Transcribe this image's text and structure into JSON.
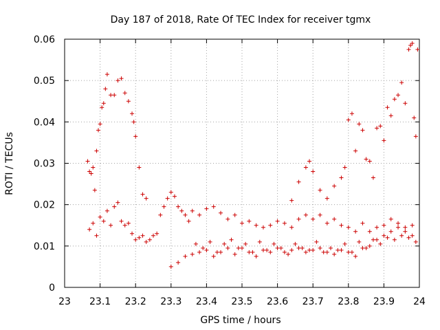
{
  "chart_data": {
    "type": "scatter",
    "title": "Day 187 of 2018, Rate Of TEC Index for receiver tgmx",
    "xlabel": "GPS time / hours",
    "ylabel": "ROTI / TECUs",
    "xlim": [
      23,
      24
    ],
    "ylim": [
      0,
      0.06
    ],
    "x_ticks": [
      "23",
      "23.1",
      "23.2",
      "23.3",
      "23.4",
      "23.5",
      "23.6",
      "23.7",
      "23.8",
      "23.9",
      "24"
    ],
    "y_ticks": [
      "0",
      "0.01",
      "0.02",
      "0.03",
      "0.04",
      "0.05",
      "0.06"
    ],
    "grid": true,
    "marker": "+",
    "color": "#cc0000",
    "series": [
      {
        "name": "ROTI",
        "x": [
          23.065,
          23.07,
          23.075,
          23.08,
          23.085,
          23.09,
          23.095,
          23.1,
          23.105,
          23.11,
          23.115,
          23.12,
          23.13,
          23.14,
          23.15,
          23.16,
          23.17,
          23.18,
          23.19,
          23.195,
          23.2,
          23.21,
          23.22,
          23.23,
          23.07,
          23.08,
          23.09,
          23.1,
          23.11,
          23.12,
          23.13,
          23.14,
          23.15,
          23.16,
          23.17,
          23.18,
          23.19,
          23.2,
          23.21,
          23.22,
          23.23,
          23.24,
          23.25,
          23.26,
          23.27,
          23.28,
          23.29,
          23.3,
          23.31,
          23.32,
          23.33,
          23.34,
          23.35,
          23.36,
          23.38,
          23.4,
          23.42,
          23.44,
          23.46,
          23.48,
          23.5,
          23.52,
          23.54,
          23.56,
          23.58,
          23.6,
          23.62,
          23.64,
          23.66,
          23.68,
          23.7,
          23.72,
          23.74,
          23.76,
          23.78,
          23.8,
          23.82,
          23.84,
          23.86,
          23.88,
          23.9,
          23.92,
          23.94,
          23.96,
          23.98,
          23.37,
          23.39,
          23.41,
          23.43,
          23.45,
          23.47,
          23.49,
          23.51,
          23.53,
          23.55,
          23.57,
          23.59,
          23.61,
          23.63,
          23.65,
          23.67,
          23.69,
          23.71,
          23.73,
          23.75,
          23.77,
          23.79,
          23.81,
          23.83,
          23.85,
          23.87,
          23.89,
          23.91,
          23.93,
          23.95,
          23.97,
          23.99,
          23.64,
          23.66,
          23.68,
          23.69,
          23.7,
          23.72,
          23.74,
          23.76,
          23.78,
          23.79,
          23.8,
          23.81,
          23.82,
          23.83,
          23.84,
          23.85,
          23.86,
          23.87,
          23.88,
          23.89,
          23.9,
          23.91,
          23.92,
          23.93,
          23.94,
          23.95,
          23.96,
          23.97,
          23.975,
          23.98,
          23.985,
          23.99,
          23.995,
          23.3,
          23.32,
          23.34,
          23.36,
          23.38,
          23.4,
          23.42,
          23.44,
          23.46,
          23.48,
          23.5,
          23.52,
          23.54,
          23.56,
          23.58,
          23.6,
          23.62,
          23.64,
          23.66,
          23.68,
          23.7,
          23.72,
          23.74,
          23.76,
          23.78,
          23.8,
          23.82,
          23.84,
          23.86,
          23.88,
          23.9,
          23.92,
          23.94,
          23.96,
          23.98
        ],
        "y": [
          0.0305,
          0.028,
          0.0275,
          0.029,
          0.0235,
          0.033,
          0.038,
          0.0395,
          0.0435,
          0.0445,
          0.048,
          0.0515,
          0.0465,
          0.0465,
          0.05,
          0.0505,
          0.047,
          0.045,
          0.042,
          0.04,
          0.0365,
          0.029,
          0.0225,
          0.0215,
          0.014,
          0.0155,
          0.0125,
          0.017,
          0.016,
          0.0185,
          0.015,
          0.0195,
          0.0205,
          0.016,
          0.015,
          0.0155,
          0.013,
          0.0115,
          0.012,
          0.0125,
          0.011,
          0.0115,
          0.0125,
          0.013,
          0.0175,
          0.0195,
          0.0215,
          0.023,
          0.022,
          0.0195,
          0.0185,
          0.0175,
          0.016,
          0.0185,
          0.0175,
          0.019,
          0.0195,
          0.018,
          0.0165,
          0.0175,
          0.0155,
          0.016,
          0.015,
          0.0145,
          0.015,
          0.016,
          0.0155,
          0.0145,
          0.0165,
          0.0175,
          0.0165,
          0.0175,
          0.0155,
          0.0165,
          0.015,
          0.0145,
          0.0135,
          0.0155,
          0.0135,
          0.0145,
          0.015,
          0.0165,
          0.0155,
          0.0145,
          0.015,
          0.0105,
          0.0095,
          0.011,
          0.0085,
          0.0105,
          0.0115,
          0.0095,
          0.0105,
          0.0085,
          0.011,
          0.009,
          0.0105,
          0.0095,
          0.008,
          0.0105,
          0.0095,
          0.009,
          0.011,
          0.0085,
          0.0095,
          0.009,
          0.0105,
          0.0085,
          0.011,
          0.0095,
          0.0115,
          0.0105,
          0.012,
          0.0115,
          0.0125,
          0.012,
          0.011,
          0.021,
          0.0255,
          0.029,
          0.0305,
          0.028,
          0.0235,
          0.0215,
          0.0245,
          0.0265,
          0.029,
          0.0405,
          0.042,
          0.033,
          0.0395,
          0.038,
          0.031,
          0.0305,
          0.0265,
          0.0385,
          0.039,
          0.0355,
          0.0435,
          0.0415,
          0.0455,
          0.0465,
          0.0495,
          0.0445,
          0.0575,
          0.0585,
          0.059,
          0.041,
          0.0365,
          0.0575,
          0.005,
          0.006,
          0.0075,
          0.008,
          0.0085,
          0.009,
          0.0075,
          0.0085,
          0.0095,
          0.008,
          0.0095,
          0.0085,
          0.0075,
          0.009,
          0.0085,
          0.0095,
          0.0085,
          0.009,
          0.0095,
          0.0085,
          0.009,
          0.0095,
          0.0085,
          0.008,
          0.009,
          0.0085,
          0.0075,
          0.0095,
          0.01,
          0.0115,
          0.0125,
          0.0135,
          0.0145,
          0.0135,
          0.0125
        ]
      }
    ]
  }
}
